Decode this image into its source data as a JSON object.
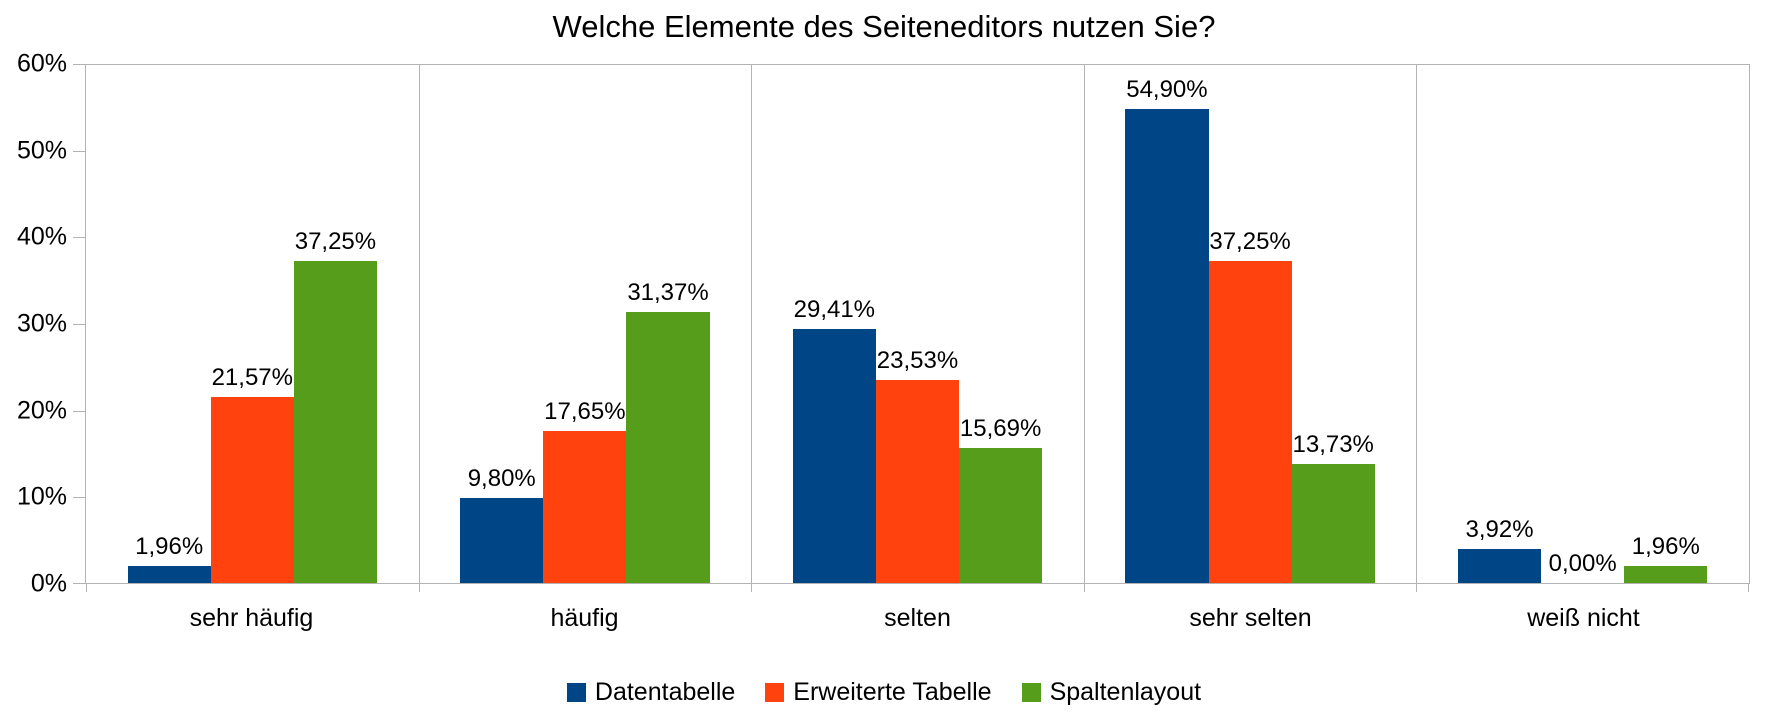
{
  "chart_data": {
    "type": "bar",
    "title": "Welche Elemente des Seiteneditors nutzen Sie?",
    "categories": [
      "sehr häufig",
      "häufig",
      "selten",
      "sehr selten",
      "weiß nicht"
    ],
    "series": [
      {
        "name": "Datentabelle",
        "color": "#004586",
        "values": [
          1.96,
          9.8,
          29.41,
          54.9,
          3.92
        ],
        "labels": [
          "1,96%",
          "9,80%",
          "29,41%",
          "54,90%",
          "3,92%"
        ]
      },
      {
        "name": "Erweiterte Tabelle",
        "color": "#FF420E",
        "values": [
          21.57,
          17.65,
          23.53,
          37.25,
          0.0
        ],
        "labels": [
          "21,57%",
          "17,65%",
          "23,53%",
          "37,25%",
          "0,00%"
        ]
      },
      {
        "name": "Spaltenlayout",
        "color": "#579D1C",
        "values": [
          37.25,
          31.37,
          15.69,
          13.73,
          1.96
        ],
        "labels": [
          "37,25%",
          "31,37%",
          "15,69%",
          "13,73%",
          "1,96%"
        ]
      }
    ],
    "y_axis": {
      "min": 0,
      "max": 60,
      "step": 10,
      "tick_labels": [
        "0%",
        "10%",
        "20%",
        "30%",
        "40%",
        "50%",
        "60%"
      ]
    },
    "grid": {
      "horizontal": false,
      "vertical": true
    },
    "legend_position": "bottom",
    "axis_color": "#b3b3b3",
    "text_color": "#000000"
  }
}
